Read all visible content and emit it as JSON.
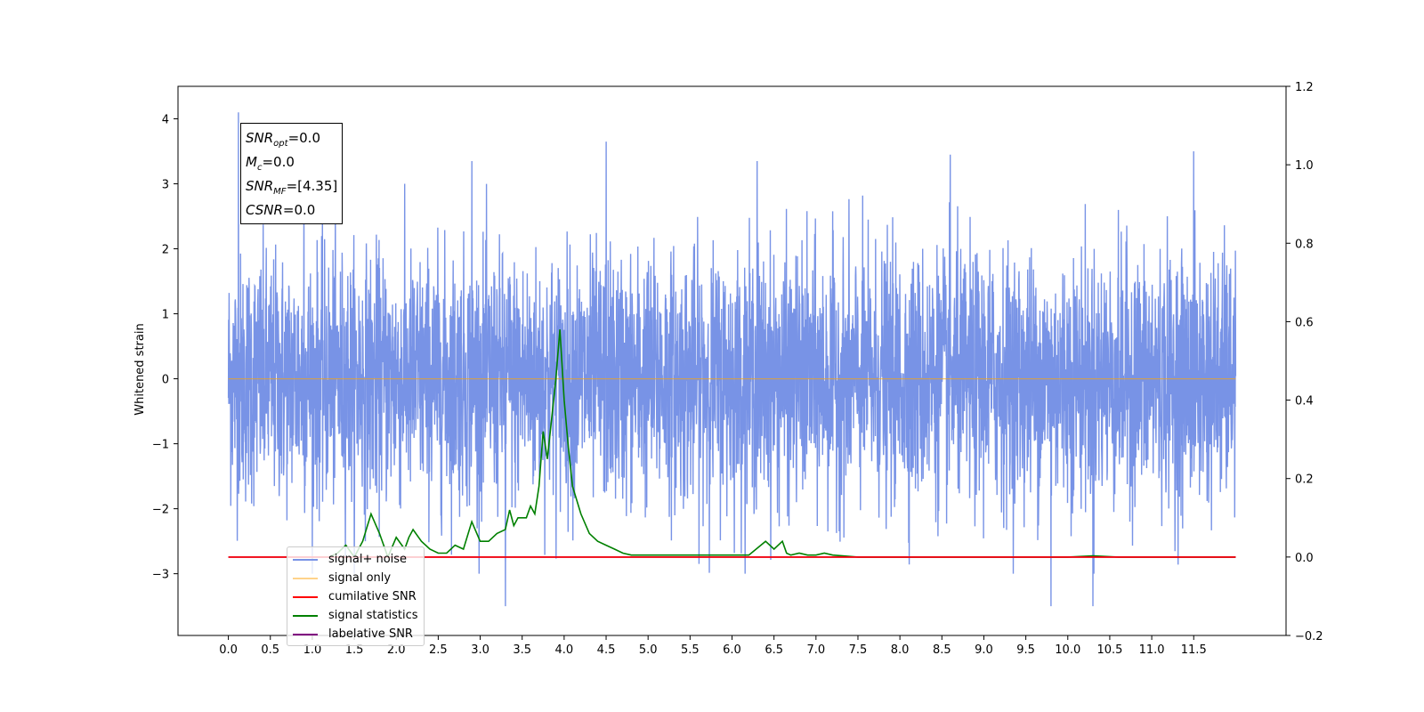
{
  "chart_data": {
    "type": "line",
    "ylabel": "Whitened strain",
    "xlabel": "",
    "title": "",
    "xlim": [
      -0.6,
      12.6
    ],
    "ylim": [
      -3.95,
      4.5
    ],
    "y2lim": [
      -0.2,
      1.2
    ],
    "x_ticks": [
      "0.0",
      "0.5",
      "1.0",
      "1.5",
      "2.0",
      "2.5",
      "3.0",
      "3.5",
      "4.0",
      "4.5",
      "5.0",
      "5.5",
      "6.0",
      "6.5",
      "7.0",
      "7.5",
      "8.0",
      "8.5",
      "9.0",
      "9.5",
      "10.0",
      "10.5",
      "11.0",
      "11.5"
    ],
    "y_ticks": [
      "−3",
      "−2",
      "−1",
      "0",
      "1",
      "2",
      "3",
      "4"
    ],
    "y2_ticks": [
      "−0.2",
      "0.0",
      "0.2",
      "0.4",
      "0.6",
      "0.8",
      "1.0",
      "1.2"
    ],
    "annotation": {
      "snr_opt": "=0.0",
      "mc": "=0.0",
      "snr_mf": "=[4.35]",
      "csnr": "=0.0"
    },
    "legend_position": "lower-left",
    "legend": [
      "signal+ noise",
      "signal only",
      "cumilative SNR",
      "signal statistics",
      "labelative SNR"
    ],
    "series": [
      {
        "name": "signal+ noise",
        "axis": "left",
        "color": "#7893e6",
        "description": "Gaussian-like whitened noise, x from 0.0 to 12.0, envelope roughly ±2 with spikes to +4.1 and −3.5",
        "peaks": [
          {
            "x": 0.12,
            "y": 4.1
          },
          {
            "x": 0.9,
            "y": 3.1
          },
          {
            "x": 2.9,
            "y": 3.35
          },
          {
            "x": 4.5,
            "y": 3.65
          },
          {
            "x": 6.3,
            "y": 3.35
          },
          {
            "x": 8.6,
            "y": 3.45
          },
          {
            "x": 11.5,
            "y": 3.5
          },
          {
            "x": 3.3,
            "y": -3.5
          },
          {
            "x": 9.8,
            "y": -3.5
          },
          {
            "x": 10.3,
            "y": -3.5
          }
        ]
      },
      {
        "name": "signal only",
        "axis": "left",
        "color": "#ffa500",
        "x": [
          0.0,
          12.0
        ],
        "y": [
          0.0,
          0.0
        ]
      },
      {
        "name": "signal statistics",
        "axis": "right",
        "color": "#008000",
        "x": [
          1.2,
          1.3,
          1.4,
          1.5,
          1.6,
          1.7,
          1.8,
          1.9,
          2.0,
          2.1,
          2.15,
          2.2,
          2.3,
          2.4,
          2.5,
          2.6,
          2.7,
          2.8,
          2.9,
          3.0,
          3.1,
          3.2,
          3.3,
          3.35,
          3.4,
          3.45,
          3.5,
          3.55,
          3.6,
          3.65,
          3.7,
          3.75,
          3.8,
          3.85,
          3.9,
          3.95,
          4.0,
          4.05,
          4.1,
          4.2,
          4.3,
          4.4,
          4.5,
          4.6,
          4.7,
          4.8,
          4.9,
          5.0,
          5.2,
          5.4,
          5.6,
          5.8,
          6.0,
          6.2,
          6.4,
          6.5,
          6.55,
          6.6,
          6.65,
          6.7,
          6.8,
          6.9,
          7.0,
          7.1,
          7.2,
          7.5,
          8.0,
          9.0,
          10.0,
          10.3,
          10.6,
          11.0,
          11.5,
          12.0
        ],
        "y": [
          0.0,
          0.01,
          0.03,
          0.0,
          0.04,
          0.11,
          0.06,
          0.0,
          0.05,
          0.02,
          0.05,
          0.07,
          0.04,
          0.02,
          0.01,
          0.01,
          0.03,
          0.02,
          0.09,
          0.04,
          0.04,
          0.06,
          0.07,
          0.12,
          0.08,
          0.1,
          0.1,
          0.1,
          0.13,
          0.11,
          0.18,
          0.32,
          0.25,
          0.35,
          0.45,
          0.58,
          0.4,
          0.28,
          0.18,
          0.11,
          0.06,
          0.04,
          0.03,
          0.02,
          0.01,
          0.005,
          0.005,
          0.005,
          0.005,
          0.005,
          0.005,
          0.005,
          0.005,
          0.005,
          0.04,
          0.02,
          0.03,
          0.04,
          0.01,
          0.005,
          0.01,
          0.005,
          0.005,
          0.01,
          0.005,
          0.0,
          0.0,
          0.0,
          0.0,
          0.003,
          0.0,
          0.0,
          0.0,
          0.0
        ]
      },
      {
        "name": "labelative SNR",
        "axis": "right",
        "color": "#800080",
        "x": [
          0.0,
          12.0
        ],
        "y": [
          0.0,
          0.0
        ]
      },
      {
        "name": "cumilative SNR",
        "axis": "right",
        "color": "#ff0000",
        "x": [
          0.0,
          12.0
        ],
        "y": [
          0.0,
          0.0
        ]
      }
    ]
  }
}
